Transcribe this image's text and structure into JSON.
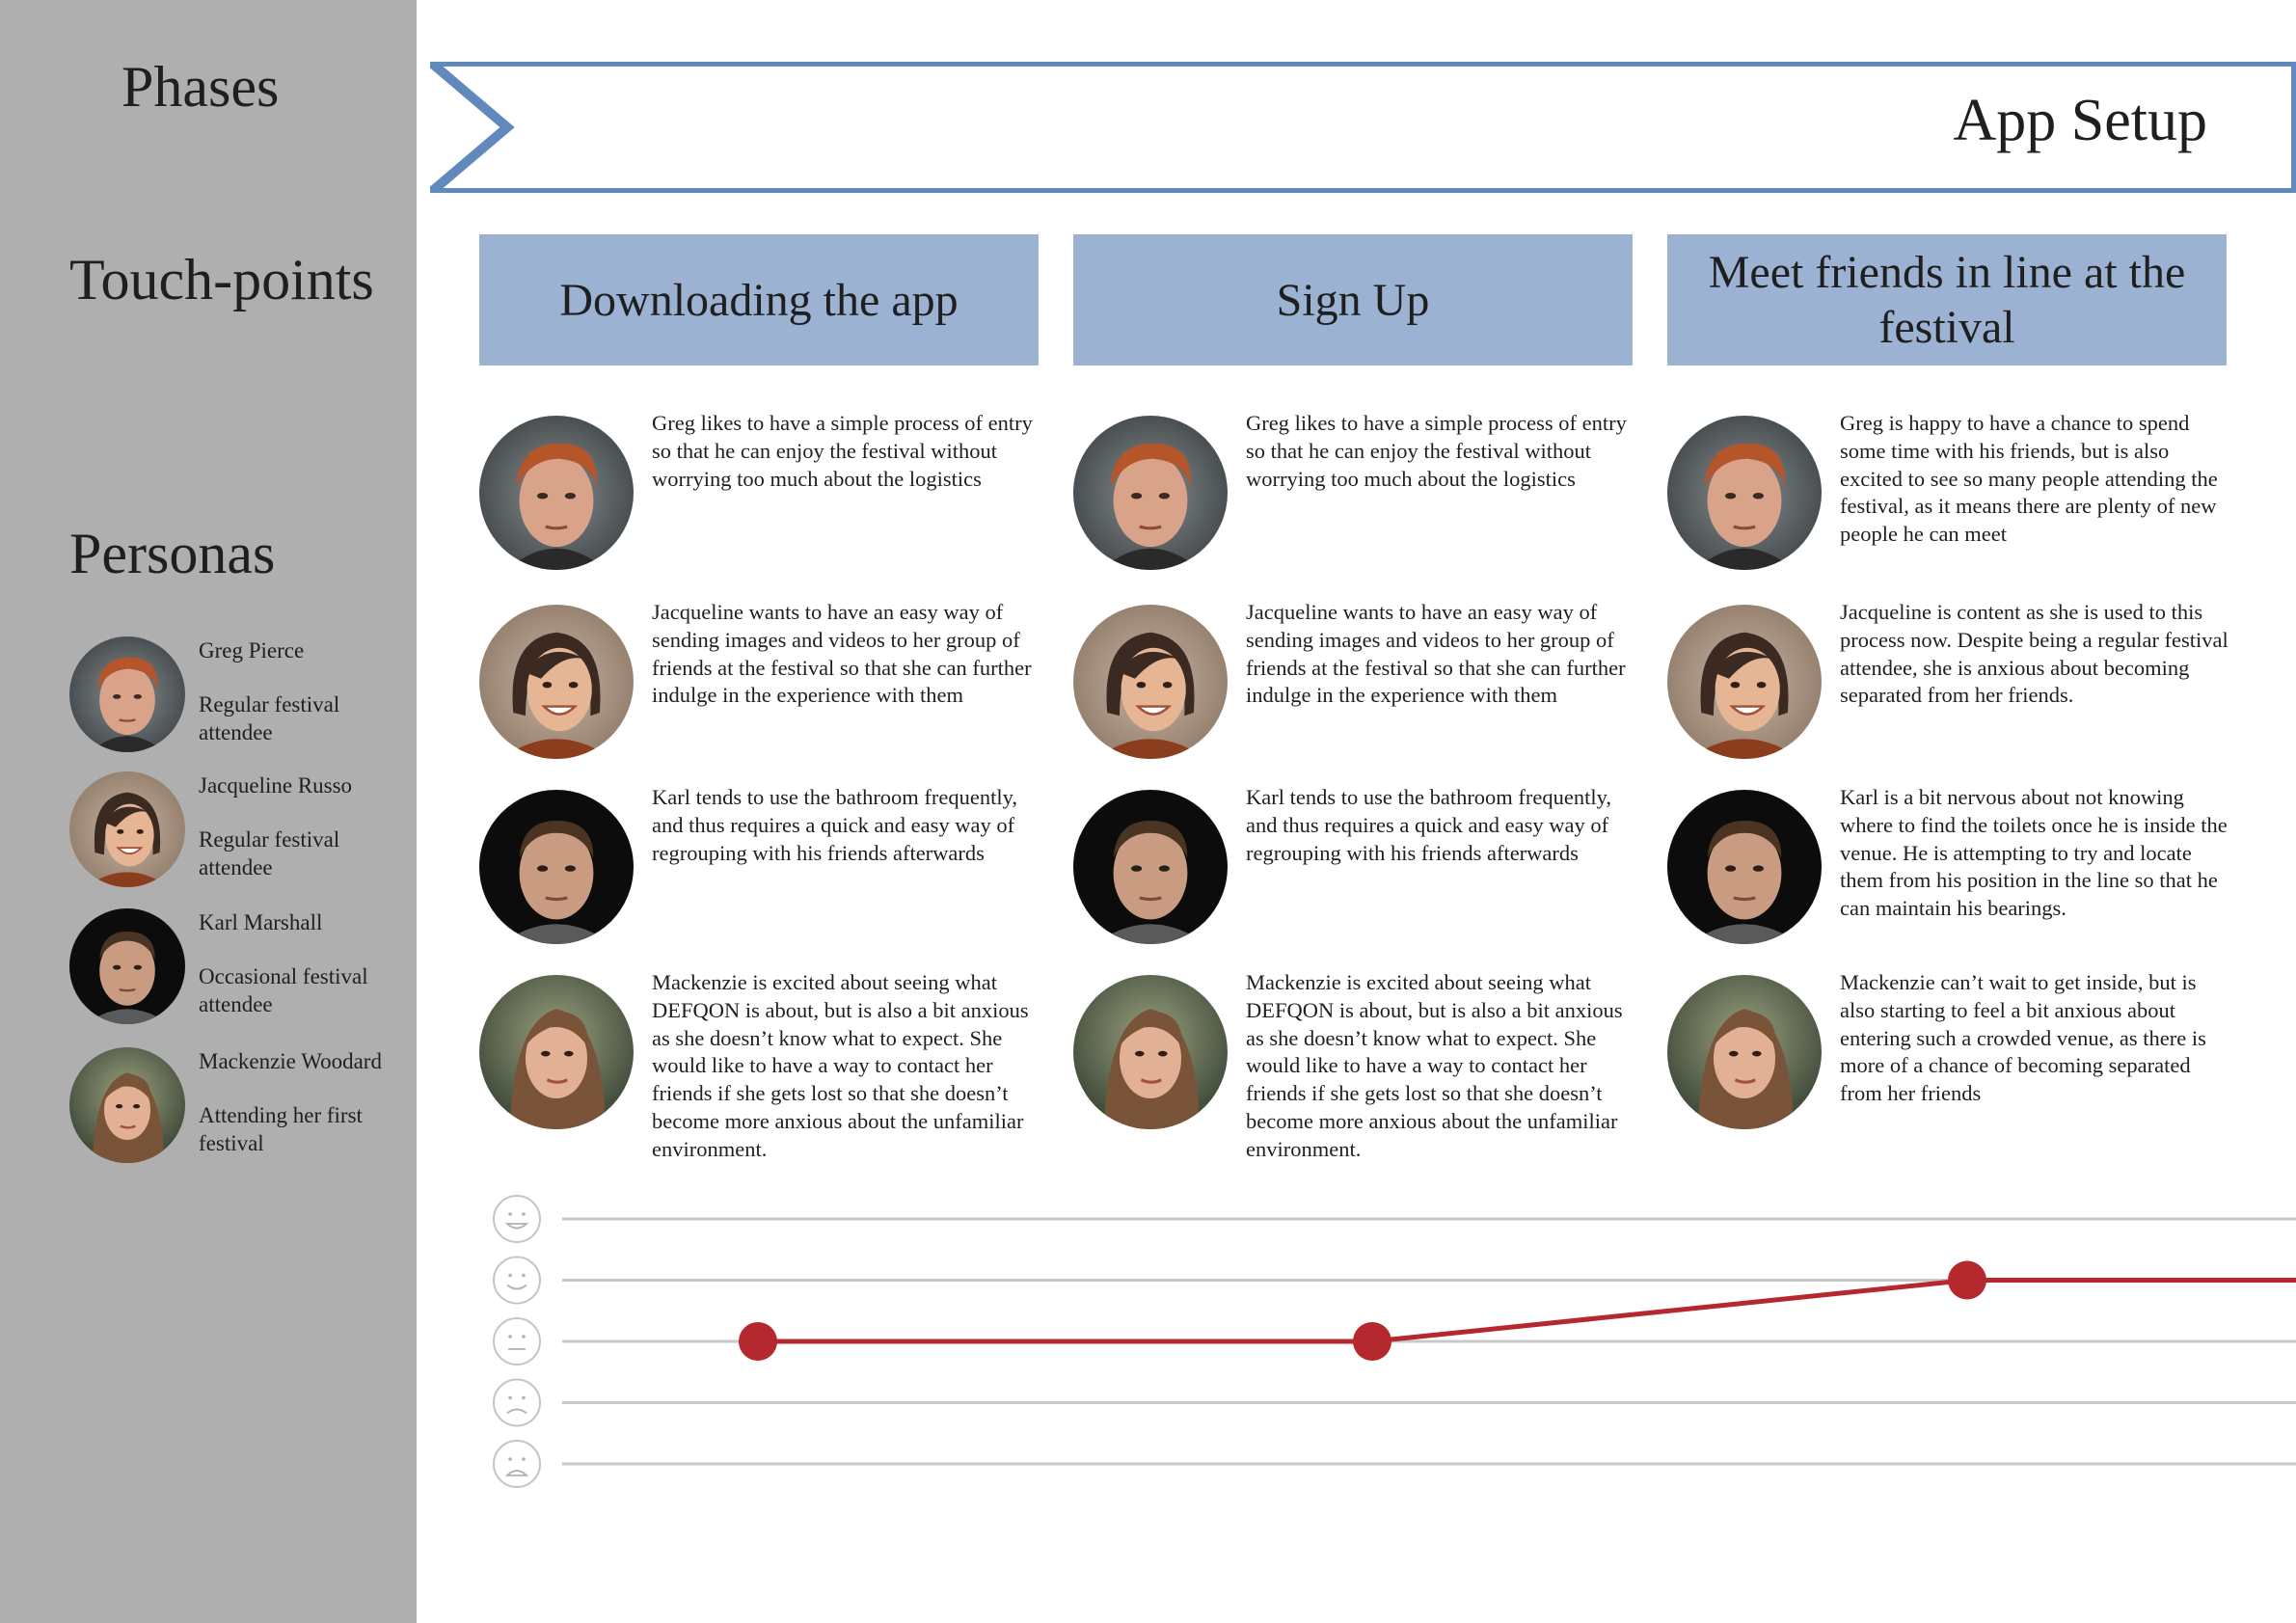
{
  "sidebar": {
    "phases_label": "Phases",
    "touchpoints_label": "Touch-points",
    "personas_label": "Personas",
    "personas": [
      {
        "name": "Greg Pierce",
        "desc": "Regular festival attendee"
      },
      {
        "name": "Jacqueline Russo",
        "desc": "Regular festival attendee"
      },
      {
        "name": "Karl Marshall",
        "desc": "Occasional festival attendee"
      },
      {
        "name": "Mackenzie Woodard",
        "desc": "Attending her first festival"
      }
    ]
  },
  "phase": {
    "title": "App Setup"
  },
  "touchpoints": [
    {
      "title": "Downloading the app",
      "notes": [
        "Greg likes to have a simple process of entry so that he can enjoy the festival without worrying too much about the logistics",
        "Jacqueline wants to have an easy way of sending images and videos to her group of friends at the festival so that she can further indulge in the experience with them",
        "Karl tends to use the bathroom frequently, and thus requires a quick and easy way of regrouping with his friends afterwards",
        "Mackenzie is excited about seeing what DEFQON is about, but is also a bit anx­ious as she doesn’t know what to expect. She would like to have a way to contact her friends if she gets lost so that she doesn’t become more anxious about the unfamiliar environment."
      ]
    },
    {
      "title": "Sign Up",
      "notes": [
        "Greg likes to have a simple process of entry so that he can enjoy the festival without worrying too much about the logistics",
        "Jacqueline wants to have an easy way of sending images and videos to her group of friends at the festival so that she can further indulge in the experience with them",
        "Karl tends to use the bathroom frequently, and thus requires a quick and easy way of regrouping with his friends afterwards",
        "Mackenzie is excited about seeing what DEFQON is about, but is also a bit anx­ious as she doesn’t know what to expect. She would like to have a way to contact her friends if she gets lost so that she doesn’t become more anxious about the unfamiliar environment."
      ]
    },
    {
      "title": "Meet friends in line at the festival",
      "notes": [
        "Greg is happy to have a chance to spend some time with his friends, but is also excited to see so many people attending the festival, as it means there are plenty of new people he can meet",
        "Jacqueline is content as she is used to this process now. Despite being a regular festival attendee, she is anxious about becoming separated from her friends.",
        "Karl is a bit nervous about not knowing where to find the toilets once he is inside the venue. He is attempting to try and locate them from his position in the line so that he can maintain his bearings.",
        "Mackenzie can’t wait to get inside, but is also starting to feel a bit anxious about entering such a crowded venue, as there is more of a chance of becoming separated from her friends"
      ]
    }
  ],
  "emotion_scale": [
    "very-happy-face-icon",
    "happy-face-icon",
    "neutral-face-icon",
    "sad-face-icon",
    "very-sad-face-icon"
  ],
  "colors": {
    "sidebar": "#afafaf",
    "banner": "#6189bb",
    "touchpoint": "#9bb2d2",
    "curve": "#b5292e"
  },
  "chart_data": {
    "type": "line",
    "x": [
      "Downloading the app",
      "Sign Up",
      "Meet friends in line at the festival"
    ],
    "levels": [
      2,
      1,
      0,
      -1,
      -2
    ],
    "values": [
      0,
      0,
      1
    ],
    "extends_right": true
  }
}
